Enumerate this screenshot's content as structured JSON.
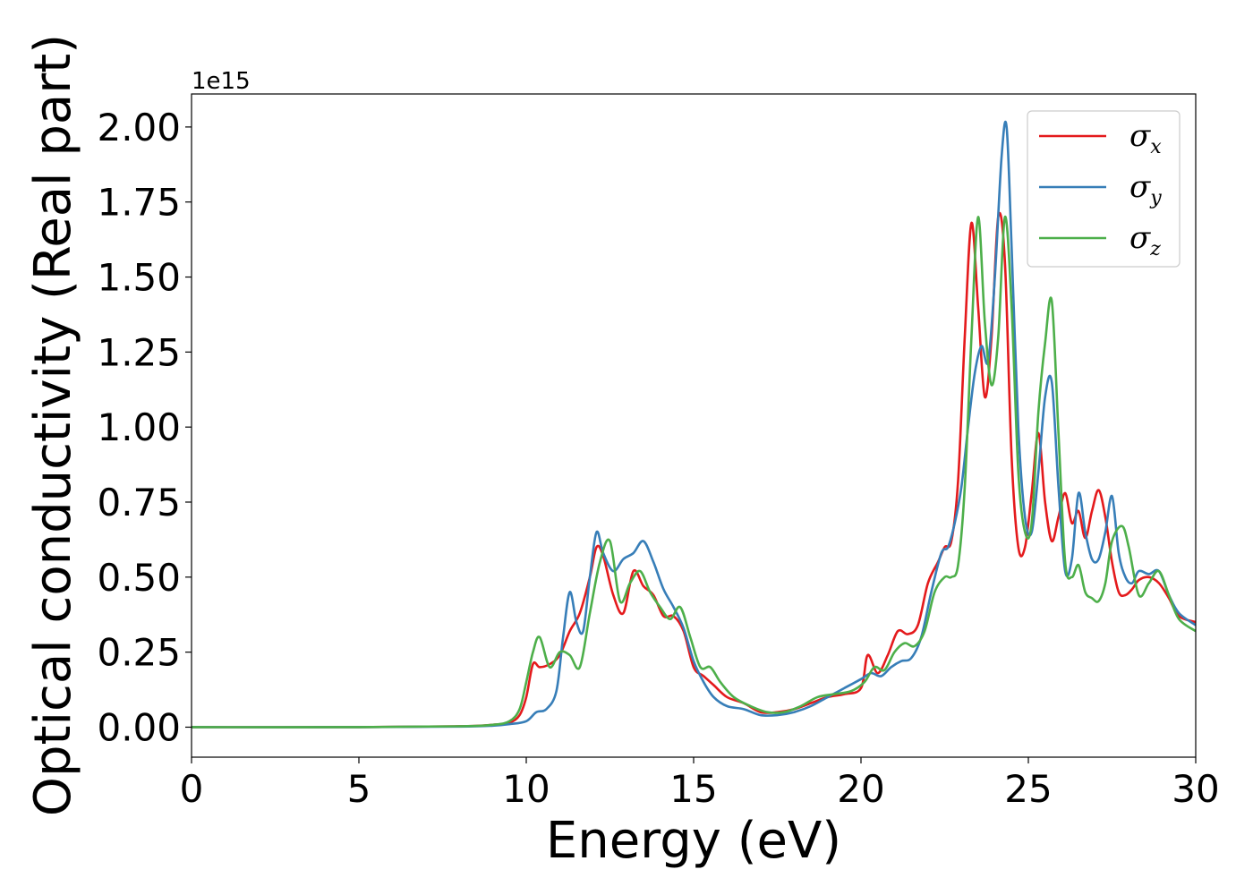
{
  "chart_data": {
    "type": "line",
    "xlabel": "Energy (eV)",
    "ylabel": "Optical conductivity (Real part)",
    "offset_text": "1e15",
    "xlim": [
      0,
      30
    ],
    "ylim": [
      -0.1,
      2.11
    ],
    "xticks": [
      0,
      5,
      10,
      15,
      20,
      25,
      30
    ],
    "xtick_labels": [
      "0",
      "5",
      "10",
      "15",
      "20",
      "25",
      "30"
    ],
    "yticks": [
      0,
      0.25,
      0.5,
      0.75,
      1.0,
      1.25,
      1.5,
      1.75,
      2.0
    ],
    "ytick_labels": [
      "0.00",
      "0.25",
      "0.50",
      "0.75",
      "1.00",
      "1.25",
      "1.50",
      "1.75",
      "2.00"
    ],
    "grid": false,
    "legend_position": "top-right",
    "series": [
      {
        "name": "σ",
        "subscript": "x",
        "color": "#e41a1c",
        "x": [
          0,
          5,
          8,
          9,
          9.5,
          9.8,
          10.0,
          10.2,
          10.4,
          10.7,
          11.0,
          11.3,
          11.6,
          11.9,
          12.1,
          12.3,
          12.6,
          12.9,
          13.2,
          13.5,
          13.8,
          14.1,
          14.4,
          14.7,
          15.0,
          15.3,
          15.6,
          16.0,
          16.5,
          17.0,
          17.5,
          18.0,
          18.5,
          19.0,
          19.5,
          20.0,
          20.2,
          20.5,
          20.8,
          21.1,
          21.4,
          21.7,
          22.0,
          22.3,
          22.5,
          22.7,
          22.9,
          23.1,
          23.3,
          23.5,
          23.7,
          23.9,
          24.1,
          24.3,
          24.5,
          24.7,
          24.9,
          25.1,
          25.3,
          25.5,
          25.7,
          25.9,
          26.1,
          26.3,
          26.5,
          26.7,
          26.9,
          27.1,
          27.3,
          27.5,
          27.7,
          27.9,
          28.1,
          28.3,
          28.6,
          28.9,
          29.2,
          29.5,
          30.0
        ],
        "y": [
          0,
          0,
          0.003,
          0.008,
          0.015,
          0.04,
          0.1,
          0.21,
          0.2,
          0.21,
          0.24,
          0.32,
          0.38,
          0.5,
          0.6,
          0.57,
          0.44,
          0.38,
          0.52,
          0.47,
          0.44,
          0.37,
          0.37,
          0.32,
          0.2,
          0.17,
          0.14,
          0.1,
          0.08,
          0.05,
          0.05,
          0.06,
          0.08,
          0.1,
          0.11,
          0.13,
          0.24,
          0.18,
          0.24,
          0.32,
          0.31,
          0.34,
          0.48,
          0.55,
          0.6,
          0.62,
          0.82,
          1.3,
          1.68,
          1.4,
          1.1,
          1.3,
          1.7,
          1.55,
          0.9,
          0.6,
          0.6,
          0.78,
          0.98,
          0.75,
          0.62,
          0.7,
          0.78,
          0.68,
          0.72,
          0.63,
          0.72,
          0.79,
          0.7,
          0.55,
          0.45,
          0.44,
          0.46,
          0.49,
          0.5,
          0.48,
          0.43,
          0.37,
          0.35
        ]
      },
      {
        "name": "σ",
        "subscript": "y",
        "color": "#377eb8",
        "x": [
          0,
          5,
          8,
          9,
          9.5,
          10.0,
          10.3,
          10.6,
          10.9,
          11.1,
          11.3,
          11.5,
          11.7,
          11.9,
          12.1,
          12.3,
          12.6,
          12.9,
          13.2,
          13.5,
          13.8,
          14.1,
          14.4,
          14.7,
          15.0,
          15.3,
          15.6,
          16.0,
          16.5,
          17.0,
          17.5,
          18.0,
          18.5,
          19.0,
          19.5,
          20.0,
          20.3,
          20.6,
          20.9,
          21.2,
          21.5,
          21.8,
          22.1,
          22.4,
          22.6,
          22.8,
          23.0,
          23.2,
          23.4,
          23.6,
          23.8,
          24.0,
          24.2,
          24.35,
          24.5,
          24.7,
          24.9,
          25.1,
          25.3,
          25.5,
          25.7,
          25.9,
          26.1,
          26.3,
          26.5,
          26.7,
          26.9,
          27.1,
          27.3,
          27.5,
          27.7,
          27.9,
          28.1,
          28.3,
          28.6,
          28.9,
          29.2,
          29.5,
          30.0
        ],
        "y": [
          0,
          0,
          0.002,
          0.005,
          0.01,
          0.02,
          0.05,
          0.06,
          0.12,
          0.3,
          0.45,
          0.35,
          0.32,
          0.5,
          0.65,
          0.58,
          0.52,
          0.56,
          0.58,
          0.62,
          0.55,
          0.46,
          0.4,
          0.33,
          0.22,
          0.15,
          0.1,
          0.07,
          0.06,
          0.04,
          0.04,
          0.05,
          0.07,
          0.1,
          0.13,
          0.16,
          0.18,
          0.17,
          0.2,
          0.22,
          0.23,
          0.3,
          0.45,
          0.58,
          0.6,
          0.68,
          0.8,
          1.0,
          1.18,
          1.27,
          1.22,
          1.5,
          1.9,
          2.0,
          1.6,
          1.0,
          0.7,
          0.65,
          0.85,
          1.1,
          1.15,
          0.8,
          0.52,
          0.56,
          0.78,
          0.65,
          0.56,
          0.56,
          0.65,
          0.77,
          0.58,
          0.5,
          0.48,
          0.52,
          0.51,
          0.52,
          0.44,
          0.38,
          0.34
        ]
      },
      {
        "name": "σ",
        "subscript": "z",
        "color": "#4daf4a",
        "x": [
          0,
          5,
          8,
          9,
          9.5,
          9.8,
          10.0,
          10.2,
          10.4,
          10.7,
          11.0,
          11.3,
          11.6,
          11.9,
          12.2,
          12.5,
          12.8,
          13.1,
          13.4,
          13.7,
          14.0,
          14.3,
          14.6,
          14.9,
          15.2,
          15.5,
          15.8,
          16.2,
          16.7,
          17.2,
          17.7,
          18.2,
          18.7,
          19.2,
          19.7,
          20.1,
          20.4,
          20.7,
          21.0,
          21.3,
          21.6,
          21.9,
          22.2,
          22.5,
          22.7,
          22.9,
          23.1,
          23.3,
          23.5,
          23.7,
          23.9,
          24.1,
          24.3,
          24.5,
          24.7,
          24.9,
          25.1,
          25.3,
          25.5,
          25.7,
          25.9,
          26.1,
          26.3,
          26.5,
          26.7,
          26.9,
          27.1,
          27.3,
          27.5,
          27.8,
          28.0,
          28.3,
          28.6,
          28.9,
          29.2,
          29.5,
          30.0
        ],
        "y": [
          0,
          0,
          0.003,
          0.008,
          0.02,
          0.06,
          0.15,
          0.25,
          0.3,
          0.2,
          0.25,
          0.24,
          0.2,
          0.38,
          0.55,
          0.62,
          0.42,
          0.48,
          0.52,
          0.45,
          0.4,
          0.36,
          0.4,
          0.3,
          0.2,
          0.2,
          0.15,
          0.1,
          0.07,
          0.05,
          0.05,
          0.07,
          0.1,
          0.11,
          0.12,
          0.15,
          0.2,
          0.19,
          0.25,
          0.28,
          0.27,
          0.32,
          0.45,
          0.5,
          0.5,
          0.54,
          0.8,
          1.3,
          1.7,
          1.35,
          1.14,
          1.3,
          1.7,
          1.4,
          0.85,
          0.65,
          0.68,
          1.05,
          1.28,
          1.42,
          0.98,
          0.55,
          0.5,
          0.54,
          0.45,
          0.43,
          0.42,
          0.48,
          0.62,
          0.67,
          0.6,
          0.44,
          0.48,
          0.52,
          0.44,
          0.36,
          0.32
        ]
      }
    ]
  }
}
